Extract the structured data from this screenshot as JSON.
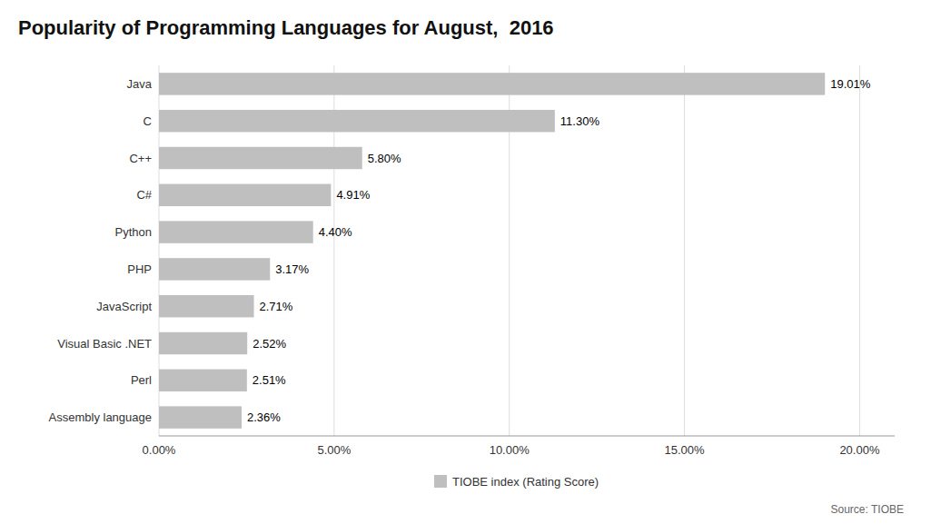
{
  "chart_data": {
    "type": "bar",
    "orientation": "horizontal",
    "title": "Popularity of Programming Languages for August,  2016",
    "categories": [
      "Assembly language",
      "Perl",
      "Visual Basic .NET",
      "JavaScript",
      "PHP",
      "Python",
      "C#",
      "C++",
      "C",
      "Java"
    ],
    "series": [
      {
        "name": "TIOBE index (Rating Score)",
        "color": "#BFBFBF",
        "values": [
          2.36,
          2.51,
          2.52,
          2.71,
          3.17,
          4.4,
          4.91,
          5.8,
          11.3,
          19.01
        ],
        "value_labels": [
          "2.36%",
          "2.51%",
          "2.52%",
          "2.71%",
          "3.17%",
          "4.40%",
          "4.91%",
          "5.80%",
          "11.30%",
          "19.01%"
        ]
      }
    ],
    "data_labels": true,
    "xlim": [
      0,
      21
    ],
    "xticks": [
      {
        "value": 0,
        "label": "0.00%"
      },
      {
        "value": 5,
        "label": "5.00%"
      },
      {
        "value": 10,
        "label": "10.00%"
      },
      {
        "value": 15,
        "label": "15.00%"
      },
      {
        "value": 20,
        "label": "20.00%"
      }
    ],
    "grid": true,
    "legend": "bottom",
    "annotations": [
      "Source: TIOBE"
    ]
  }
}
